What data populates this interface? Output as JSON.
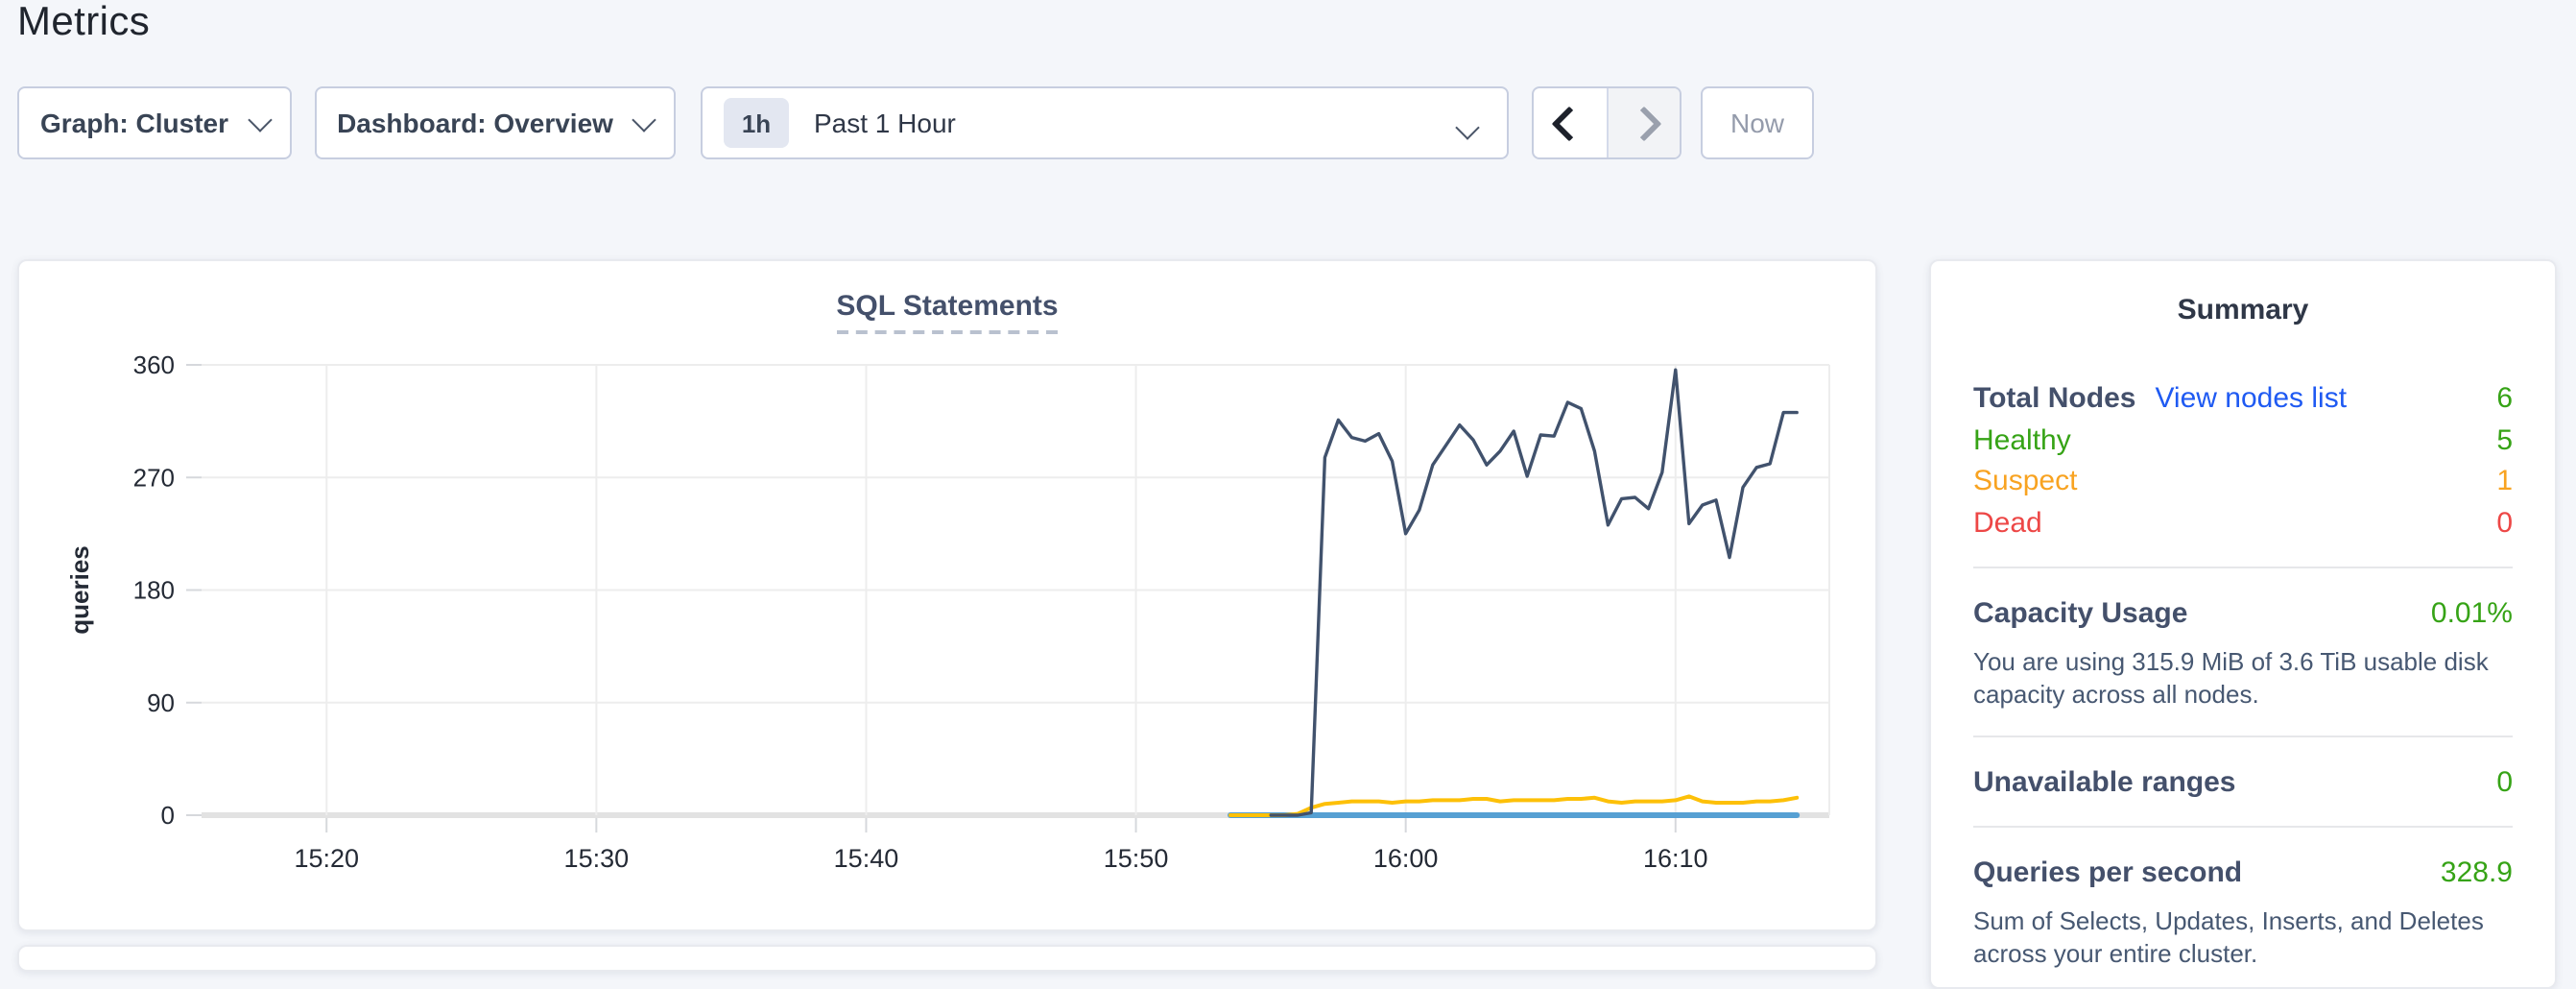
{
  "page": {
    "title": "Metrics",
    "background": "#f4f6fa"
  },
  "controls": {
    "graph_dropdown": {
      "label": "Graph: Cluster",
      "icon": "chevron-down"
    },
    "dashboard_dropdown": {
      "label": "Dashboard: Overview",
      "icon": "chevron-down"
    },
    "time_window": {
      "badge": "1h",
      "label": "Past 1 Hour",
      "icon": "chevron-down"
    },
    "prev_button": {
      "icon": "chevron-left",
      "enabled": true
    },
    "next_button": {
      "icon": "chevron-right",
      "enabled": false
    },
    "now_button": {
      "label": "Now",
      "enabled": false
    }
  },
  "chart_data": {
    "type": "line",
    "title": "SQL Statements",
    "ylabel": "queries",
    "yticks": [
      0,
      90,
      180,
      270,
      360
    ],
    "ylim": [
      0,
      360
    ],
    "xticks": [
      "15:20",
      "15:30",
      "15:40",
      "15:50",
      "16:00",
      "16:10"
    ],
    "x_range": [
      "15:15:22",
      "16:15:42"
    ],
    "grid": true,
    "legend": "none",
    "x": [
      "15:53:30",
      "15:54:00",
      "15:54:30",
      "15:55:00",
      "15:55:30",
      "15:56:00",
      "15:56:30",
      "15:57:00",
      "15:57:30",
      "15:58:00",
      "15:58:30",
      "15:59:00",
      "15:59:30",
      "16:00:00",
      "16:00:30",
      "16:01:00",
      "16:01:30",
      "16:02:00",
      "16:02:30",
      "16:03:00",
      "16:03:30",
      "16:04:00",
      "16:04:30",
      "16:05:00",
      "16:05:30",
      "16:06:00",
      "16:06:30",
      "16:07:00",
      "16:07:30",
      "16:08:00",
      "16:08:30",
      "16:09:00",
      "16:09:30",
      "16:10:00",
      "16:10:30",
      "16:11:00",
      "16:11:30",
      "16:12:00",
      "16:12:30",
      "16:13:00",
      "16:13:30",
      "16:14:00",
      "16:14:30"
    ],
    "series": [
      {
        "name": "blue-series",
        "color": "#56a0d3",
        "stroke_width": 3,
        "values": [
          0,
          0,
          0,
          0,
          0,
          0,
          0,
          0,
          0,
          0,
          0,
          0,
          0,
          0,
          0,
          0,
          0,
          0,
          0,
          0,
          0,
          0,
          0,
          0,
          0,
          0,
          0,
          0,
          0,
          0,
          0,
          0,
          0,
          0,
          0,
          0,
          0,
          0,
          0,
          0,
          0,
          0,
          0
        ]
      },
      {
        "name": "yellow-series",
        "color": "#fdc008",
        "stroke_width": 2,
        "values": [
          0,
          0,
          0,
          0,
          0,
          1,
          6,
          9,
          10,
          11,
          11,
          11,
          10,
          11,
          11,
          12,
          12,
          12,
          13,
          13,
          11,
          12,
          12,
          12,
          12,
          13,
          13,
          14,
          11,
          10,
          11,
          11,
          11,
          12,
          15,
          11,
          10,
          10,
          10,
          11,
          11,
          12,
          14
        ]
      },
      {
        "name": "navy-series",
        "color": "#41526d",
        "stroke_width": 1.7,
        "values": [
          null,
          null,
          null,
          0,
          0,
          0,
          2,
          286,
          316,
          302,
          299,
          305,
          283,
          225,
          244,
          280,
          296,
          312,
          300,
          280,
          291,
          307,
          271,
          304,
          303,
          330,
          325,
          291,
          232,
          253,
          254,
          245,
          274,
          356,
          233,
          248,
          252,
          206,
          262,
          278,
          281,
          322,
          322
        ]
      }
    ]
  },
  "summary": {
    "title": "Summary",
    "total_nodes": {
      "label": "Total Nodes",
      "link": "View nodes list",
      "value": "6"
    },
    "node_rows": [
      {
        "label": "Healthy",
        "value": "5",
        "color": "#36a316"
      },
      {
        "label": "Suspect",
        "value": "1",
        "color": "#f8a321"
      },
      {
        "label": "Dead",
        "value": "0",
        "color": "#ed4746"
      }
    ],
    "capacity": {
      "label": "Capacity Usage",
      "value": "0.01%",
      "desc": "You are using 315.9 MiB of 3.6 TiB usable disk capacity across all nodes."
    },
    "unavailable": {
      "label": "Unavailable ranges",
      "value": "0"
    },
    "qps": {
      "label": "Queries per second",
      "value": "328.9",
      "desc": "Sum of Selects, Updates, Inserts, and Deletes across your entire cluster."
    }
  },
  "colors": {
    "green": "#36a316",
    "orange": "#f8a321",
    "red": "#ed4746",
    "link_blue": "#1f5af2",
    "navy_line": "#41526d",
    "yellow_line": "#fdc008",
    "blue_line": "#56a0d3",
    "gridline": "#ededed",
    "zero_line": "#e2e2e2",
    "tick_text": "#242a35"
  }
}
